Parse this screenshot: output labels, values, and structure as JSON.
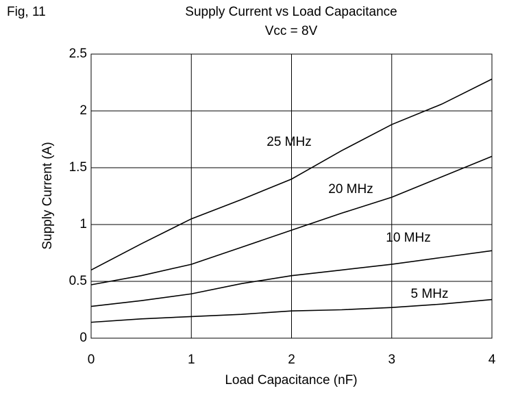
{
  "figure_label": "Fig, 11",
  "chart_data": {
    "type": "line",
    "title": "Supply Current vs Load Capacitance",
    "subtitle": "Vcc = 8V",
    "x_label": "Load Capacitance (nF)",
    "y_label": "Supply Current (A)",
    "x": [
      0,
      0.5,
      1,
      1.5,
      2,
      2.5,
      3,
      3.5,
      4
    ],
    "series": [
      {
        "name": "25 MHz",
        "color": "#000000",
        "values": [
          0.6,
          0.83,
          1.05,
          1.22,
          1.4,
          1.65,
          1.88,
          2.06,
          2.28
        ]
      },
      {
        "name": "20 MHz",
        "color": "#000000",
        "values": [
          0.47,
          0.55,
          0.65,
          0.8,
          0.95,
          1.1,
          1.24,
          1.42,
          1.6
        ]
      },
      {
        "name": "10 MHz",
        "color": "#000000",
        "values": [
          0.28,
          0.33,
          0.39,
          0.48,
          0.55,
          0.6,
          0.65,
          0.71,
          0.77
        ]
      },
      {
        "name": "5 MHz",
        "color": "#000000",
        "values": [
          0.14,
          0.17,
          0.19,
          0.21,
          0.24,
          0.25,
          0.27,
          0.3,
          0.34
        ]
      }
    ],
    "xlim": [
      0,
      4
    ],
    "xticks": [
      0,
      1,
      2,
      3,
      4
    ],
    "ylim": [
      0,
      2.5
    ],
    "yticks": [
      0,
      0.5,
      1,
      1.5,
      2,
      2.5
    ],
    "grid": true
  }
}
